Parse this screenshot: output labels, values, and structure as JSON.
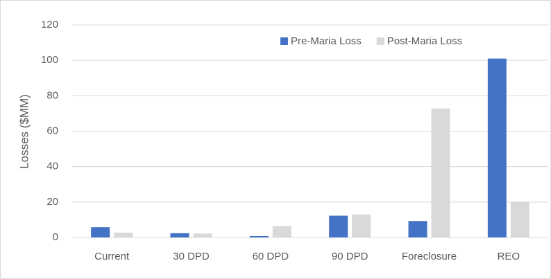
{
  "chart_data": {
    "type": "bar",
    "y_label": "Losses ($MM)",
    "categories": [
      "Current",
      "30 DPD",
      "60 DPD",
      "90 DPD",
      "Foreclosure",
      "REO"
    ],
    "series": [
      {
        "name": "Pre-Maria Loss",
        "color": "#4472c4",
        "values": [
          5.8,
          2.4,
          0.8,
          12.3,
          9.3,
          101
        ]
      },
      {
        "name": "Post-Maria Loss",
        "color": "#d9d9d9",
        "values": [
          2.7,
          2.2,
          6.4,
          12.9,
          72.8,
          20
        ]
      }
    ],
    "ylim": [
      0,
      120
    ],
    "yticks": [
      0,
      20,
      40,
      60,
      80,
      100,
      120
    ],
    "grid": true,
    "legend": "top"
  }
}
